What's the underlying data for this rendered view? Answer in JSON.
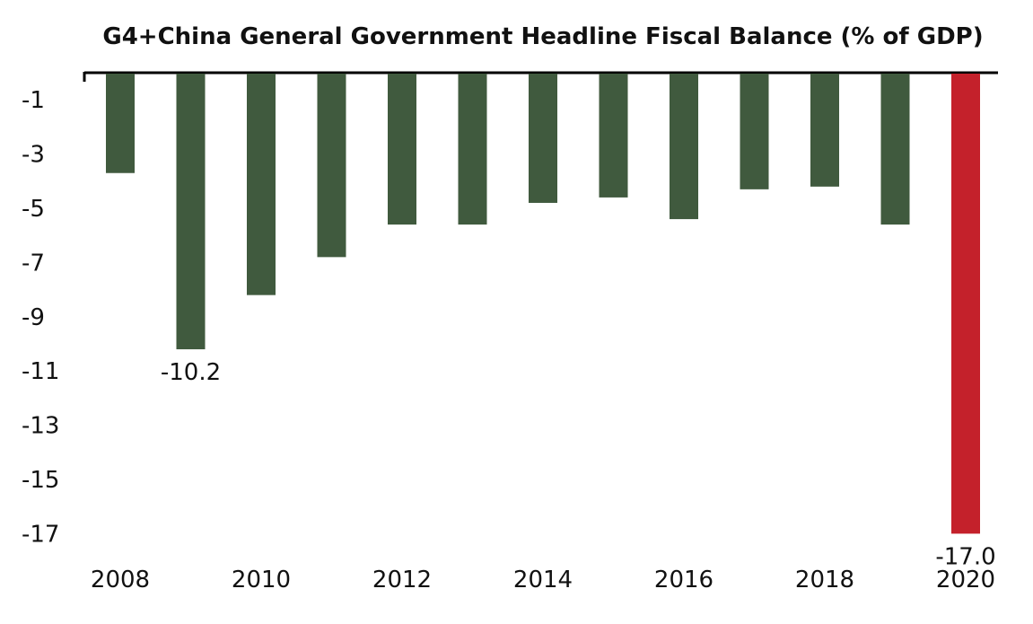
{
  "chart_data": {
    "type": "bar",
    "title": "G4+China General Government Headline Fiscal Balance (% of GDP)",
    "xlabel": "",
    "ylabel": "",
    "categories": [
      "2008",
      "2009",
      "2010",
      "2011",
      "2012",
      "2013",
      "2014",
      "2015",
      "2016",
      "2017",
      "2018",
      "2019",
      "2020"
    ],
    "values": [
      -3.7,
      -10.2,
      -8.2,
      -6.8,
      -5.6,
      -5.6,
      -4.8,
      -4.6,
      -5.4,
      -4.3,
      -4.2,
      -5.6,
      -17.0
    ],
    "x_tick_labels": [
      "2008",
      "2010",
      "2012",
      "2014",
      "2016",
      "2018",
      "2020"
    ],
    "y_tick_labels": [
      "-1",
      "-3",
      "-5",
      "-7",
      "-9",
      "-11",
      "-13",
      "-15",
      "-17"
    ],
    "y_ticks": [
      -1,
      -3,
      -5,
      -7,
      -9,
      -11,
      -13,
      -15,
      -17
    ],
    "ylim": [
      -17.5,
      0
    ],
    "grid": false,
    "highlight_index": 12,
    "data_labels": [
      {
        "index": 1,
        "text": "-10.2"
      },
      {
        "index": 12,
        "text": "-17.0"
      }
    ],
    "colors": {
      "bar": "#405a3e",
      "highlight": "#c4212b",
      "axis": "#000000"
    }
  }
}
